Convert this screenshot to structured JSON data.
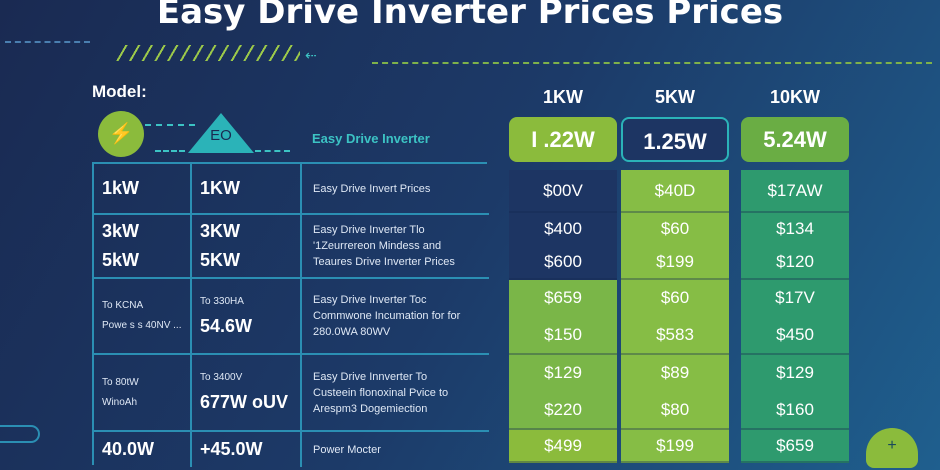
{
  "title": "Easy Drive Inverter Prices Prices",
  "model_label": "Model:",
  "brand_label": "Easy Drive Inverter",
  "icons": {
    "left": "plug-icon",
    "badge": "eco-triangle-icon",
    "bottom_right": "cloud-icon"
  },
  "badge_text": "EO",
  "colors": {
    "navy": "#1d3563",
    "green": "#84bb45",
    "teal": "#2e9a6e",
    "accent": "#2b8fb3"
  },
  "spec_rows": [
    {
      "a": [
        "1kW"
      ],
      "b": [
        "1KW"
      ],
      "desc": [
        "Easy Drive Invert Prices"
      ]
    },
    {
      "a": [
        "3kW",
        "5kW"
      ],
      "b": [
        "3KW",
        "5KW"
      ],
      "desc": [
        "Easy Drive Inverter Tlo",
        "'1Zeurrereon Mindess and",
        "Teaures Drive Inverter Prices"
      ]
    },
    {
      "a": [
        "To KCNA",
        "Powe s s 40NV ..."
      ],
      "b": [
        "To 330HA",
        "54.6W"
      ],
      "desc": [
        "Easy Drive Inverter Toc",
        "Commwone Incumation for for",
        "280.0WA 80WV"
      ]
    },
    {
      "a": [
        "To 80tW",
        "WinoAh"
      ],
      "b": [
        "To 3400V",
        "677W oUV"
      ],
      "desc": [
        "Easy Drive Innverter To",
        "Custeein flonoxinal Pvice to",
        "Arespm3 Dogemiection"
      ]
    },
    {
      "a": [
        "40.0W"
      ],
      "b": [
        "+45.0W"
      ],
      "desc": [
        "Power Mocter"
      ]
    }
  ],
  "price_columns": [
    {
      "header": "1KW",
      "rating": "I .22W",
      "cells": [
        [
          "$00V"
        ],
        [
          "$400",
          "$600"
        ],
        [
          "$659",
          "$150"
        ],
        [
          "$129",
          "$220"
        ],
        [
          "$499"
        ]
      ]
    },
    {
      "header": "5KW",
      "rating": "1.25W",
      "cells": [
        [
          "$40D"
        ],
        [
          "$60",
          "$199"
        ],
        [
          "$60",
          "$583"
        ],
        [
          "$89",
          "$80"
        ],
        [
          "$199"
        ]
      ]
    },
    {
      "header": "10KW",
      "rating": "5.24W",
      "cells": [
        [
          "$17AW"
        ],
        [
          "$134",
          "$120"
        ],
        [
          "$17V",
          "$450"
        ],
        [
          "$129",
          "$160"
        ],
        [
          "$659"
        ]
      ]
    }
  ]
}
